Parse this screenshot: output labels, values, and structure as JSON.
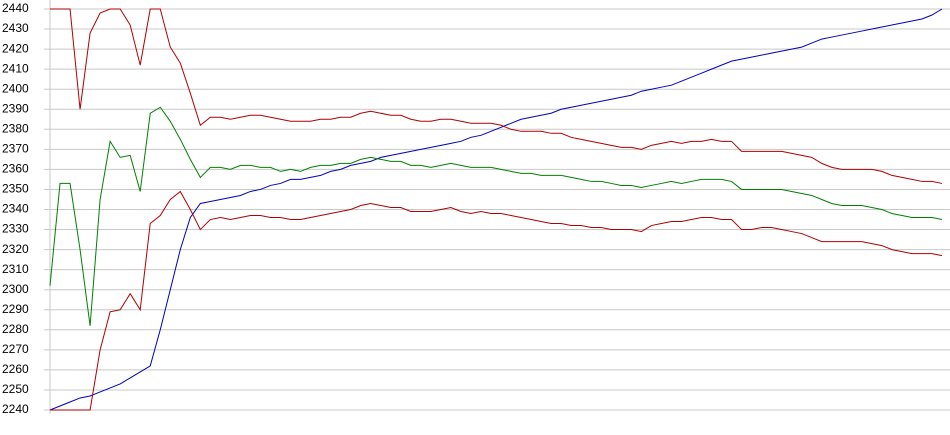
{
  "chart_data": {
    "type": "line",
    "x": [
      0,
      1,
      2,
      3,
      4,
      5,
      6,
      7,
      8,
      9,
      10,
      11,
      12,
      13,
      14,
      15,
      16,
      17,
      18,
      19,
      20,
      21,
      22,
      23,
      24,
      25,
      26,
      27,
      28,
      29,
      30,
      31,
      32,
      33,
      34,
      35,
      36,
      37,
      38,
      39,
      40,
      41,
      42,
      43,
      44,
      45,
      46,
      47,
      48,
      49,
      50,
      51,
      52,
      53,
      54,
      55,
      56,
      57,
      58,
      59,
      60,
      61,
      62,
      63,
      64,
      65,
      66,
      67,
      68,
      69,
      70,
      71,
      72,
      73,
      74,
      75,
      76,
      77,
      78,
      79,
      80,
      81,
      82,
      83,
      84,
      85,
      86,
      87,
      88,
      89
    ],
    "xlim": [
      0,
      89
    ],
    "ylim": [
      2240,
      2440
    ],
    "yticks": [
      2240,
      2250,
      2260,
      2270,
      2280,
      2290,
      2300,
      2310,
      2320,
      2330,
      2340,
      2350,
      2360,
      2370,
      2380,
      2390,
      2400,
      2410,
      2420,
      2430,
      2440
    ],
    "grid": true,
    "series": [
      {
        "color": "#0000c0",
        "values": [
          2240,
          2242,
          2244,
          2246,
          2247,
          2249,
          2251,
          2253,
          2256,
          2259,
          2262,
          2280,
          2300,
          2320,
          2336,
          2343,
          2344,
          2345,
          2346,
          2347,
          2349,
          2350,
          2352,
          2353,
          2355,
          2355,
          2356,
          2357,
          2359,
          2360,
          2362,
          2363,
          2364,
          2366,
          2367,
          2368,
          2369,
          2370,
          2371,
          2372,
          2373,
          2374,
          2376,
          2377,
          2379,
          2381,
          2383,
          2385,
          2386,
          2387,
          2388,
          2390,
          2391,
          2392,
          2393,
          2394,
          2395,
          2396,
          2397,
          2399,
          2400,
          2401,
          2402,
          2404,
          2406,
          2408,
          2410,
          2412,
          2414,
          2415,
          2416,
          2417,
          2418,
          2419,
          2420,
          2421,
          2423,
          2425,
          2426,
          2427,
          2428,
          2429,
          2430,
          2431,
          2432,
          2433,
          2434,
          2435,
          2437,
          2440
        ]
      },
      {
        "color": "#b00000",
        "values": [
          2440,
          2440,
          2440,
          2390,
          2428,
          2438,
          2440,
          2440,
          2432,
          2412,
          2440,
          2440,
          2421,
          2413,
          2398,
          2382,
          2386,
          2386,
          2385,
          2386,
          2387,
          2387,
          2386,
          2385,
          2384,
          2384,
          2384,
          2385,
          2385,
          2386,
          2386,
          2388,
          2389,
          2388,
          2387,
          2387,
          2385,
          2384,
          2384,
          2385,
          2385,
          2384,
          2383,
          2383,
          2383,
          2382,
          2380,
          2379,
          2379,
          2379,
          2378,
          2378,
          2376,
          2375,
          2374,
          2373,
          2372,
          2371,
          2371,
          2370,
          2372,
          2373,
          2374,
          2373,
          2374,
          2374,
          2375,
          2374,
          2374,
          2369,
          2369,
          2369,
          2369,
          2369,
          2368,
          2367,
          2366,
          2363,
          2361,
          2360,
          2360,
          2360,
          2360,
          2359,
          2357,
          2356,
          2355,
          2354,
          2354,
          2353
        ]
      },
      {
        "color": "#008000",
        "values": [
          2302,
          2353,
          2353,
          2320,
          2282,
          2345,
          2374,
          2366,
          2367,
          2349,
          2388,
          2391,
          2384,
          2375,
          2365,
          2356,
          2361,
          2361,
          2360,
          2362,
          2362,
          2361,
          2361,
          2359,
          2360,
          2359,
          2361,
          2362,
          2362,
          2363,
          2363,
          2365,
          2366,
          2365,
          2364,
          2364,
          2362,
          2362,
          2361,
          2362,
          2363,
          2362,
          2361,
          2361,
          2361,
          2360,
          2359,
          2358,
          2358,
          2357,
          2357,
          2357,
          2356,
          2355,
          2354,
          2354,
          2353,
          2352,
          2352,
          2351,
          2352,
          2353,
          2354,
          2353,
          2354,
          2355,
          2355,
          2355,
          2354,
          2350,
          2350,
          2350,
          2350,
          2350,
          2349,
          2348,
          2347,
          2345,
          2343,
          2342,
          2342,
          2342,
          2341,
          2340,
          2338,
          2337,
          2336,
          2336,
          2336,
          2335
        ]
      },
      {
        "color": "#b00000",
        "values": [
          2240,
          2240,
          2240,
          2240,
          2240,
          2270,
          2289,
          2290,
          2298,
          2290,
          2333,
          2337,
          2345,
          2349,
          2340,
          2330,
          2335,
          2336,
          2335,
          2336,
          2337,
          2337,
          2336,
          2336,
          2335,
          2335,
          2336,
          2337,
          2338,
          2339,
          2340,
          2342,
          2343,
          2342,
          2341,
          2341,
          2339,
          2339,
          2339,
          2340,
          2341,
          2339,
          2338,
          2339,
          2338,
          2338,
          2337,
          2336,
          2335,
          2334,
          2333,
          2333,
          2332,
          2332,
          2331,
          2331,
          2330,
          2330,
          2330,
          2329,
          2332,
          2333,
          2334,
          2334,
          2335,
          2336,
          2336,
          2335,
          2335,
          2330,
          2330,
          2331,
          2331,
          2330,
          2329,
          2328,
          2326,
          2324,
          2324,
          2324,
          2324,
          2324,
          2323,
          2322,
          2320,
          2319,
          2318,
          2318,
          2318,
          2317
        ]
      }
    ]
  }
}
